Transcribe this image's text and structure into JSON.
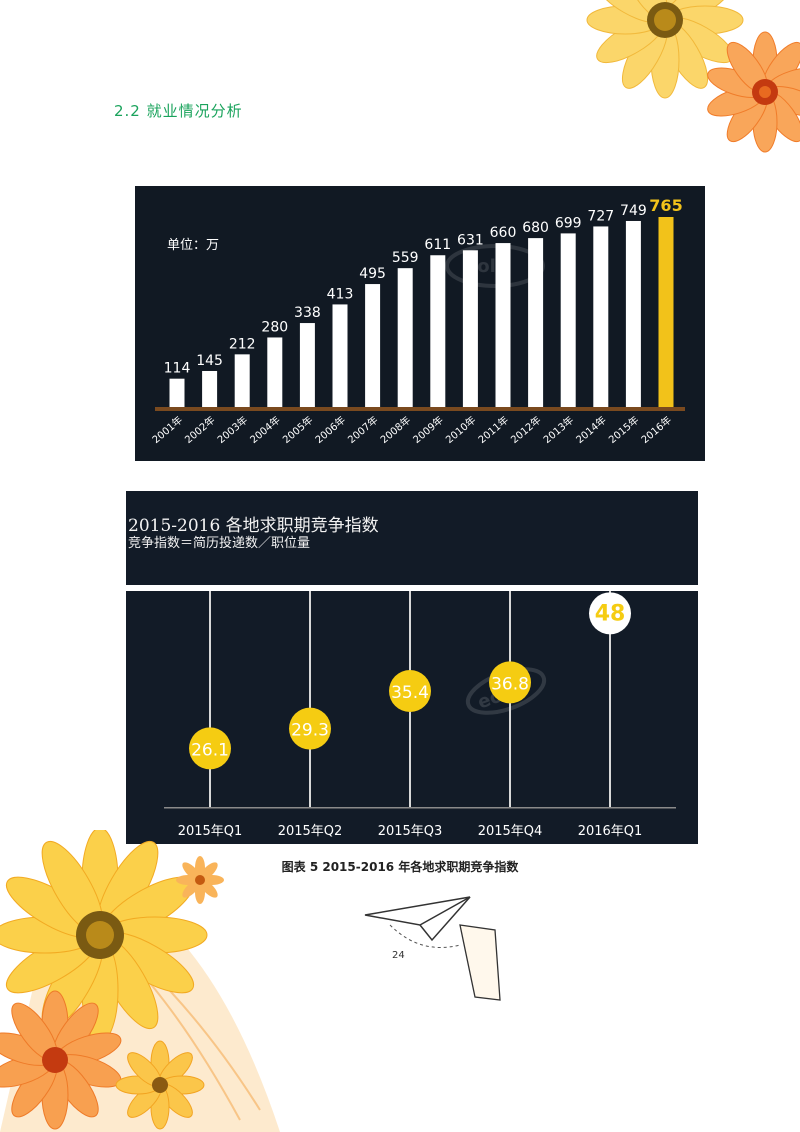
{
  "section_heading": "2.2 就业情况分析",
  "colors": {
    "chart_bg": "#111923",
    "bar": "#ffffff",
    "highlight": "#f2c21a",
    "baseline": "#7a4a1f",
    "heading": "#1aa35c",
    "bubble": "#f5cc12"
  },
  "chart_data": [
    {
      "type": "bar",
      "unit_label": "单位：万",
      "categories": [
        "2001年",
        "2002年",
        "2003年",
        "2004年",
        "2005年",
        "2006年",
        "2007年",
        "2008年",
        "2009年",
        "2010年",
        "2011年",
        "2012年",
        "2013年",
        "2014年",
        "2015年",
        "2016年"
      ],
      "values": [
        114,
        145,
        212,
        280,
        338,
        413,
        495,
        559,
        611,
        631,
        660,
        680,
        699,
        727,
        749,
        765
      ],
      "highlight_index": 15,
      "ylim": [
        0,
        800
      ]
    },
    {
      "type": "scatter",
      "title": "2015-2016  各地求职期竞争指数",
      "subtitle": "竞争指数＝简历投递数／职位量",
      "categories": [
        "2015年Q1",
        "2015年Q2",
        "2015年Q3",
        "2015年Q4",
        "2016年Q1"
      ],
      "values": [
        26.1,
        29.3,
        35.4,
        36.8,
        48
      ],
      "labels": [
        "26.1",
        "29.3",
        "35.4",
        "36.8",
        "48"
      ],
      "highlight_index": 4,
      "ylim": [
        20,
        50
      ]
    }
  ],
  "figure_caption": "图表 5   2015-2016  年各地求职期竞争指数",
  "page_number": "24",
  "decorations": [
    "flower-top-right",
    "flower-bottom-left",
    "paper-plane",
    "leaf-pattern",
    "watermark-logo"
  ]
}
